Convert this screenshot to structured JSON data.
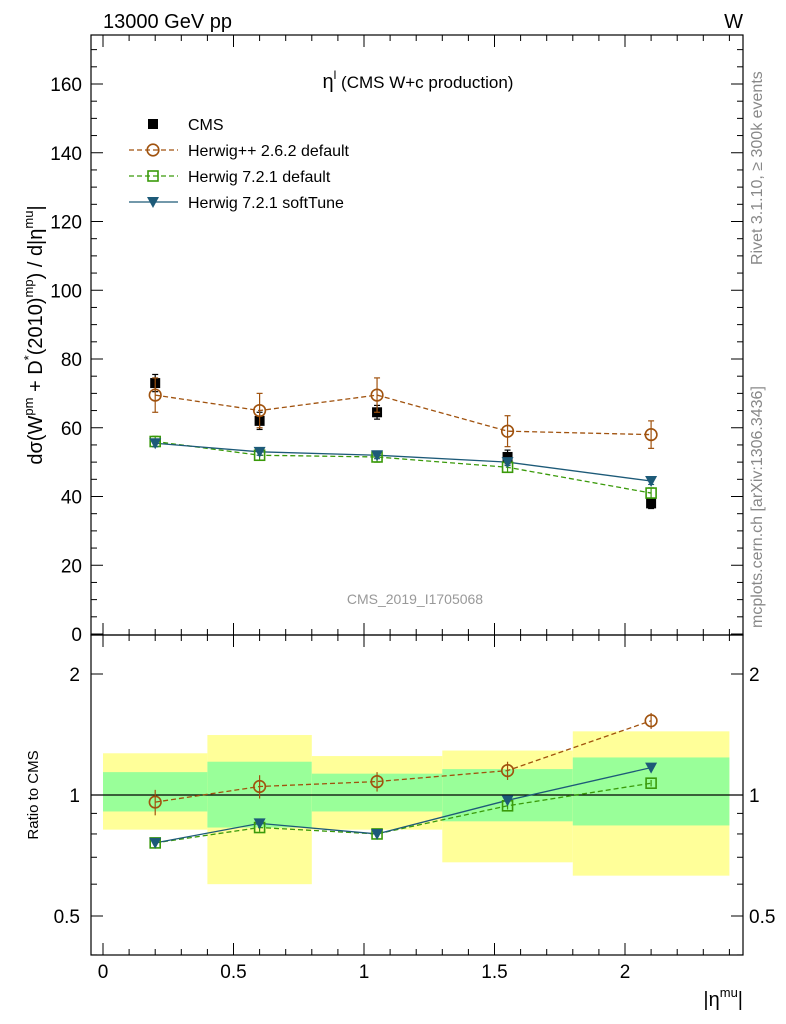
{
  "header": {
    "left": "13000 GeV pp",
    "right": "W"
  },
  "side_labels": {
    "rivet": "Rivet 3.1.10, ≥ 300k events",
    "mcplots": "mcplots.cern.ch [arXiv:1306.3436]"
  },
  "watermark": "CMS_2019_I1705068",
  "colors": {
    "cms": "#000000",
    "herwigpp": "#a0520e",
    "herwig721": "#3a9a0a",
    "softtune": "#1d5a78",
    "band_outer": "#ffff99",
    "band_inner": "#99ff99"
  },
  "chart_data": [
    {
      "type": "scatter",
      "title": "η^l (CMS W+c production)",
      "title_main": "η",
      "title_sup": "l",
      "title_rest": " (CMS W+c production)",
      "ylabel": "dσ(W^pm + D^*(2010)^mp) / d|η^mu|",
      "ylim": [
        0,
        175
      ],
      "yticks": [
        0,
        20,
        40,
        60,
        80,
        100,
        120,
        140,
        160
      ],
      "xlim": [
        -0.1,
        2.45
      ],
      "legend_position": "top-left",
      "series": [
        {
          "name": "CMS",
          "marker": "filled-square",
          "color": "#000000",
          "line": "none",
          "x": [
            0.2,
            0.6,
            1.05,
            1.55,
            2.1
          ],
          "y": [
            73,
            62,
            64.5,
            51.5,
            38
          ],
          "yerr": [
            2.5,
            2.5,
            2.0,
            2.0,
            1.5
          ]
        },
        {
          "name": "Herwig++ 2.6.2 default",
          "marker": "open-circle",
          "color": "#a0520e",
          "line": "dashed",
          "x": [
            0.2,
            0.6,
            1.05,
            1.55,
            2.1
          ],
          "y": [
            69.5,
            65,
            69.5,
            59,
            58
          ],
          "yerr": [
            5,
            5,
            5,
            4.5,
            4
          ]
        },
        {
          "name": "Herwig 7.2.1 default",
          "marker": "open-square",
          "color": "#3a9a0a",
          "line": "dashed",
          "x": [
            0.2,
            0.6,
            1.05,
            1.55,
            2.1
          ],
          "y": [
            56,
            52,
            51.5,
            48.5,
            41
          ],
          "yerr": [
            1.5,
            1.5,
            1.5,
            1.5,
            1.5
          ]
        },
        {
          "name": "Herwig 7.2.1 softTune",
          "marker": "filled-triangle-down",
          "color": "#1d5a78",
          "line": "solid",
          "x": [
            0.2,
            0.6,
            1.05,
            1.55,
            2.1
          ],
          "y": [
            55.5,
            53,
            52,
            50,
            44.5
          ],
          "yerr": [
            1,
            1,
            1,
            1,
            1
          ]
        }
      ]
    },
    {
      "type": "scatter",
      "ylabel": "Ratio to CMS",
      "xlabel": "|η^mu|",
      "xlim": [
        -0.1,
        2.45
      ],
      "ylim_log": [
        0.4,
        2.4
      ],
      "yscale": "log",
      "yticks": [
        0.5,
        1,
        2
      ],
      "xticks": [
        0,
        0.5,
        1,
        1.5,
        2
      ],
      "bins": [
        {
          "xlo": 0.0,
          "xhi": 0.4,
          "outer": [
            0.82,
            1.27
          ],
          "inner": [
            0.91,
            1.14
          ]
        },
        {
          "xlo": 0.4,
          "xhi": 0.8,
          "outer": [
            0.6,
            1.41
          ],
          "inner": [
            0.83,
            1.21
          ]
        },
        {
          "xlo": 0.8,
          "xhi": 1.3,
          "outer": [
            0.82,
            1.25
          ],
          "inner": [
            0.91,
            1.13
          ]
        },
        {
          "xlo": 1.3,
          "xhi": 1.8,
          "outer": [
            0.68,
            1.29
          ],
          "inner": [
            0.86,
            1.16
          ]
        },
        {
          "xlo": 1.8,
          "xhi": 2.4,
          "outer": [
            0.63,
            1.44
          ],
          "inner": [
            0.84,
            1.24
          ]
        }
      ],
      "series": [
        {
          "name": "Herwig++ 2.6.2 default",
          "color": "#a0520e",
          "marker": "open-circle",
          "line": "dashed",
          "x": [
            0.2,
            0.6,
            1.05,
            1.55,
            2.1
          ],
          "y": [
            0.96,
            1.05,
            1.08,
            1.15,
            1.53
          ],
          "yerr": [
            0.07,
            0.07,
            0.06,
            0.06,
            0.07
          ]
        },
        {
          "name": "Herwig 7.2.1 default",
          "color": "#3a9a0a",
          "marker": "open-square",
          "line": "dashed",
          "x": [
            0.2,
            0.6,
            1.05,
            1.55,
            2.1
          ],
          "y": [
            0.76,
            0.83,
            0.8,
            0.94,
            1.07
          ],
          "yerr": [
            0.02,
            0.02,
            0.02,
            0.02,
            0.02
          ]
        },
        {
          "name": "Herwig 7.2.1 softTune",
          "color": "#1d5a78",
          "marker": "filled-triangle-down",
          "line": "solid",
          "x": [
            0.2,
            0.6,
            1.05,
            1.55,
            2.1
          ],
          "y": [
            0.76,
            0.85,
            0.8,
            0.97,
            1.17
          ],
          "yerr": [
            0.015,
            0.015,
            0.015,
            0.015,
            0.015
          ]
        }
      ]
    }
  ]
}
